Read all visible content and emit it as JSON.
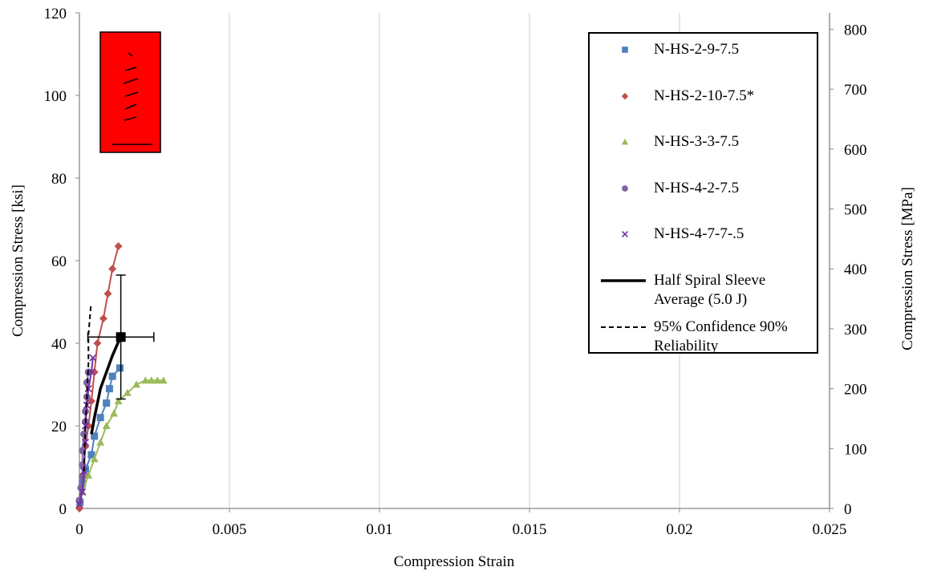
{
  "chart_data": {
    "type": "scatter",
    "x_label": "Compression Strain",
    "y_label": "Compression Stress [ksi]",
    "y2_label": "Compression Stress [MPa]",
    "xlim": [
      0,
      0.025
    ],
    "xticks": [
      0,
      0.005,
      0.01,
      0.015,
      0.02,
      0.025
    ],
    "ylim": [
      0,
      120
    ],
    "yticks": [
      0,
      20,
      40,
      60,
      80,
      100,
      120
    ],
    "y2lim": [
      0,
      827.4
    ],
    "y2ticks": [
      0,
      100,
      200,
      300,
      400,
      500,
      600,
      700,
      800
    ],
    "grid": "x",
    "series": [
      {
        "name": "N-HS-2-9-7.5",
        "color": "#4f81bd",
        "marker": "square",
        "line": "solid",
        "x": [
          2e-05,
          0.0001,
          0.0002,
          0.0004,
          0.0005,
          0.0007,
          0.0009,
          0.001,
          0.0011,
          0.00135
        ],
        "values": [
          1.5,
          6,
          9.5,
          13,
          17.5,
          22,
          25.5,
          29,
          32,
          34
        ]
      },
      {
        "name": "N-HS-2-10-7.5*",
        "color": "#c0504d",
        "marker": "diamond",
        "line": "solid",
        "x": [
          0,
          0.0001,
          0.0002,
          0.0003,
          0.0004,
          0.0005,
          0.0006,
          0.0008,
          0.00095,
          0.0011,
          0.0013
        ],
        "values": [
          0,
          8,
          15,
          20,
          26,
          33,
          40,
          46,
          52,
          58,
          63.5
        ]
      },
      {
        "name": "N-HS-3-3-7.5",
        "color": "#9bbb59",
        "marker": "triangle",
        "line": "solid",
        "x": [
          0.0001,
          0.0003,
          0.0005,
          0.0007,
          0.0009,
          0.00115,
          0.0013,
          0.0016,
          0.0019,
          0.0022,
          0.0024,
          0.0026,
          0.0028
        ],
        "values": [
          4,
          8,
          12,
          16,
          20,
          23,
          26,
          28,
          30,
          31,
          31,
          31,
          31
        ]
      },
      {
        "name": "N-HS-4-2-7.5",
        "color": "#8064a2",
        "marker": "circle",
        "line": "solid",
        "x": [
          0,
          5e-05,
          0.0001,
          0.0001,
          0.0001,
          0.00015,
          0.0002,
          0.0002,
          0.00025,
          0.00025,
          0.0003
        ],
        "values": [
          2,
          5,
          7.5,
          10.5,
          14,
          18,
          21,
          23.5,
          27,
          30.5,
          33
        ]
      },
      {
        "name": "N-HS-4-7-7-.5",
        "color": "#7030a0",
        "marker": "x",
        "line": "solid",
        "x": [
          0,
          0.0001,
          0.00015,
          0.0002,
          0.0002,
          0.00025,
          0.0003,
          0.0004,
          0.00045
        ],
        "values": [
          1,
          4,
          9,
          16,
          20,
          25,
          29,
          33,
          36.5
        ]
      },
      {
        "name": "Half Spiral Sleeve Average (5.0 J)",
        "color": "#000000",
        "marker": "none",
        "line": "thick",
        "x": [
          0.0004,
          0.0005,
          0.0007,
          0.0009,
          0.0011,
          0.0014
        ],
        "values": [
          18,
          22,
          29,
          33,
          37,
          42
        ]
      },
      {
        "name": "95% Confidence 90% Reliability",
        "color": "#000000",
        "marker": "none",
        "line": "dash",
        "x": [
          0.00015,
          0.0002,
          0.0003,
          0.0003,
          0.00038
        ],
        "values": [
          9,
          20,
          35,
          42,
          49
        ]
      }
    ],
    "error_bar": {
      "x": 0.00138,
      "y": 41.5,
      "xerr": 0.0011,
      "yerr": 15,
      "color": "#000000"
    }
  }
}
